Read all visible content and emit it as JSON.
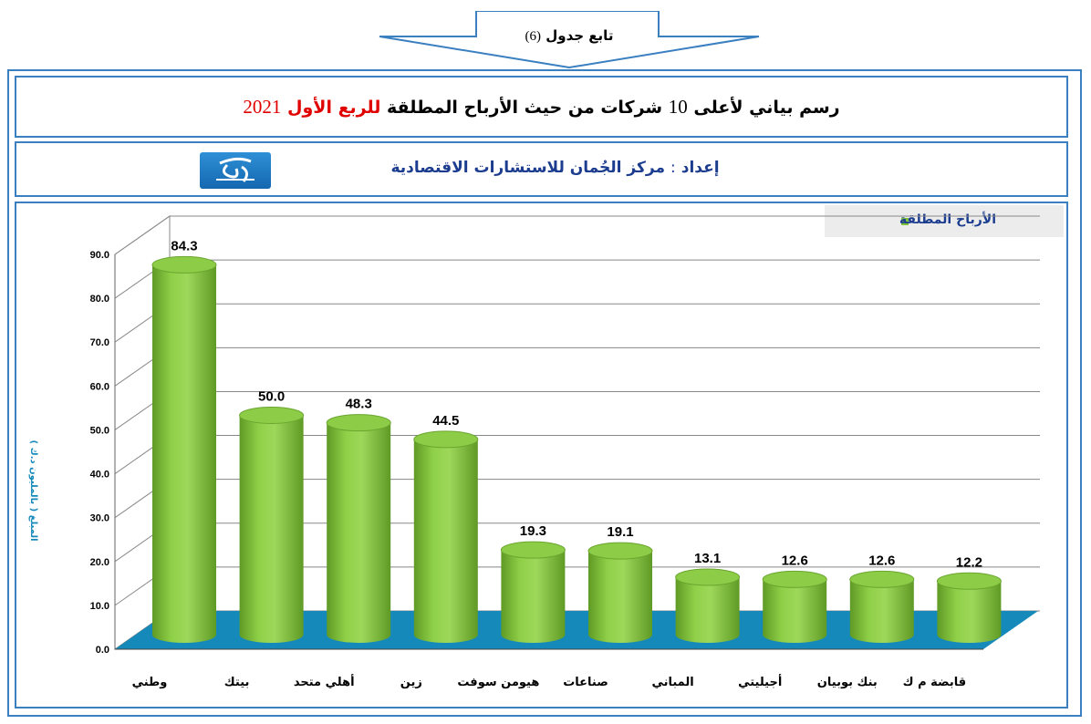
{
  "header": {
    "continuation_label": "تابع جدول",
    "continuation_num": "(6)"
  },
  "title": {
    "part1": "رسم بياني لأعلى",
    "num": "10",
    "part2": "شركات من حيث الأرباح المطلقة",
    "red_part": "للربع الأول",
    "year": "2021"
  },
  "subtitle": {
    "label": "إعداد",
    "colon": ":",
    "text": "مركز الجُمان للاستشارات الاقتصادية"
  },
  "colors": {
    "border": "#3a7fc0",
    "bar": "#7dc03a",
    "floor": "#1589b9",
    "title_red": "#e00000",
    "subtitle_blue": "#1c3d8f"
  },
  "chart_data": {
    "type": "bar",
    "categories": [
      "وطني",
      "بيتك",
      "أهلي متحد",
      "زين",
      "هيومن سوفت",
      "صناعات",
      "المباني",
      "أجيليتي",
      "بنك بوبيان",
      "قابضة م ك"
    ],
    "series": [
      {
        "name": "الأرباح المطلقة",
        "values": [
          84.3,
          50.0,
          48.3,
          44.5,
          19.3,
          19.1,
          13.1,
          12.6,
          12.6,
          12.2
        ]
      }
    ],
    "data_labels": [
      "84.3",
      "50.0",
      "48.3",
      "44.5",
      "19.3",
      "19.1",
      "13.1",
      "12.6",
      "12.6",
      "12.2"
    ],
    "ylabel": "المبلغ ( بالمليون د.ك )",
    "ylim": [
      0,
      90
    ],
    "yticks": [
      "0.0",
      "10.0",
      "20.0",
      "30.0",
      "40.0",
      "50.0",
      "60.0",
      "70.0",
      "80.0",
      "90.0"
    ],
    "grid": true,
    "legend": "top-right"
  }
}
